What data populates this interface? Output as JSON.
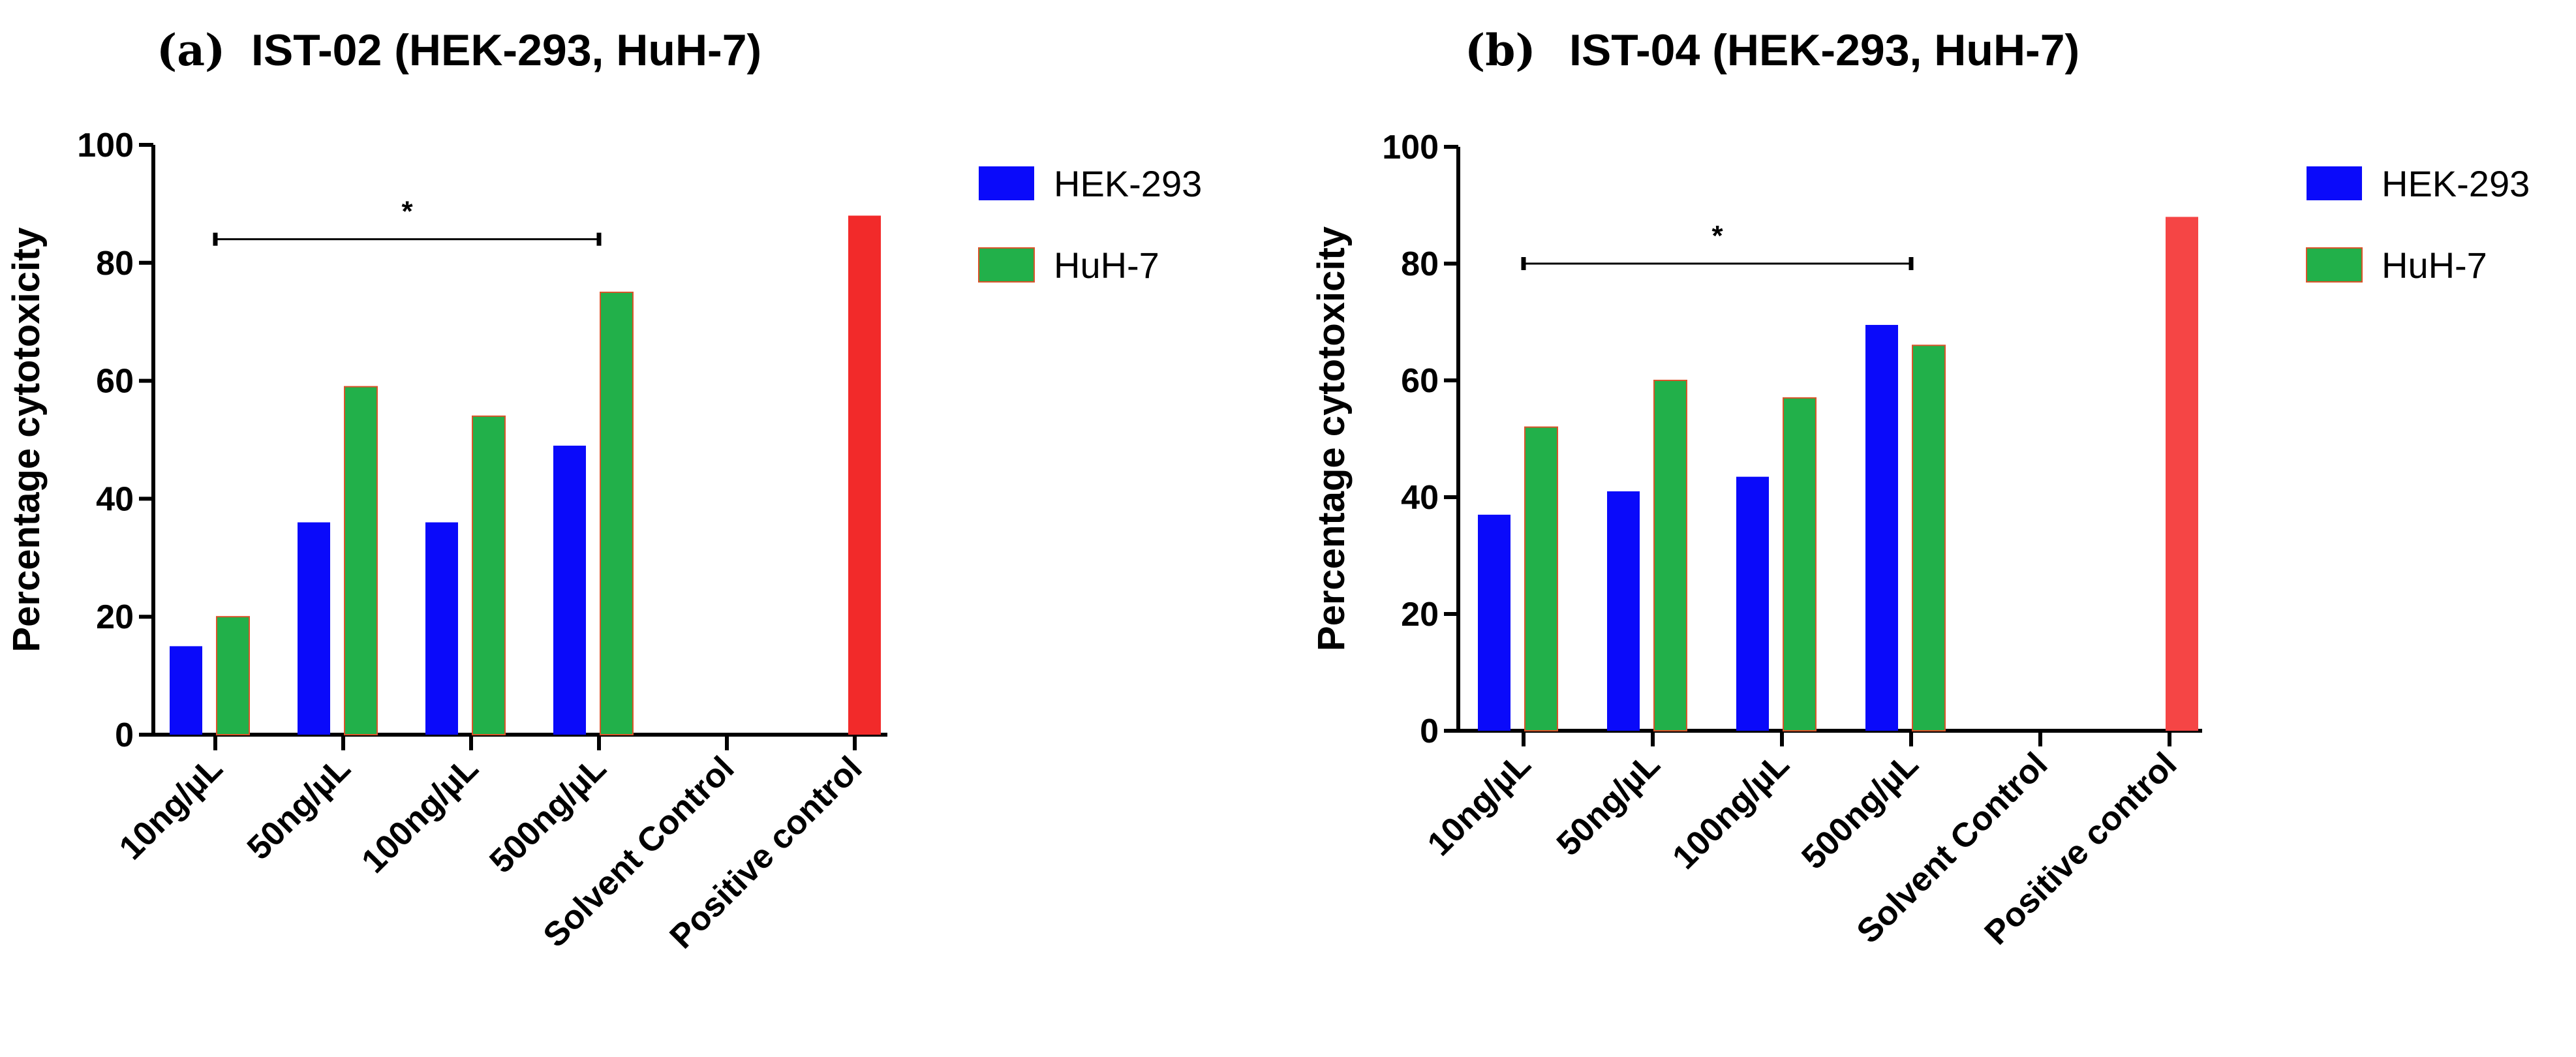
{
  "figure": {
    "panel_a_label": "(a)",
    "panel_b_label": "(b)"
  },
  "chart_data": [
    {
      "type": "bar",
      "panel": "(a)",
      "title": "IST-02 (HEK-293, HuH-7)",
      "xlabel": "",
      "ylabel": "Percentage cytotoxicity",
      "ylim": [
        0,
        100
      ],
      "yticks": [
        0,
        20,
        40,
        60,
        80,
        100
      ],
      "categories": [
        "10ng/µL",
        "50ng/µL",
        "100ng/µL",
        "500ng/µL",
        "Solvent Control",
        "Positive control"
      ],
      "series": [
        {
          "name": "HEK-293",
          "color": "#0a0afa",
          "values": [
            15,
            36,
            36,
            49,
            0,
            null
          ]
        },
        {
          "name": "HuH-7",
          "color": "#22b04a",
          "values": [
            20,
            59,
            54,
            75,
            0,
            null
          ]
        },
        {
          "name": "Positive control",
          "color": "#f22a2a",
          "values": [
            null,
            null,
            null,
            null,
            null,
            88
          ]
        }
      ],
      "legend": "top-right",
      "significance": {
        "from": "10ng/µL",
        "to": "500ng/µL",
        "y": 84,
        "text": "*"
      }
    },
    {
      "type": "bar",
      "panel": "(b)",
      "title": "IST-04 (HEK-293, HuH-7)",
      "xlabel": "",
      "ylabel": "Percentage cytotoxicity",
      "ylim": [
        0,
        100
      ],
      "yticks": [
        0,
        20,
        40,
        60,
        80,
        100
      ],
      "categories": [
        "10ng/µL",
        "50ng/µL",
        "100ng/µL",
        "500ng/µL",
        "Solvent Control",
        "Positive control"
      ],
      "series": [
        {
          "name": "HEK-293",
          "color": "#0a0afa",
          "values": [
            37,
            41,
            43.5,
            69.5,
            0,
            null
          ]
        },
        {
          "name": "HuH-7",
          "color": "#22b04a",
          "values": [
            52,
            60,
            57,
            66,
            0,
            null
          ]
        },
        {
          "name": "Positive control",
          "color": "#f54545",
          "values": [
            null,
            null,
            null,
            null,
            null,
            88
          ]
        }
      ],
      "legend": "top-right",
      "significance": {
        "from": "10ng/µL",
        "to": "500ng/µL",
        "y": 80,
        "text": "*"
      }
    }
  ]
}
